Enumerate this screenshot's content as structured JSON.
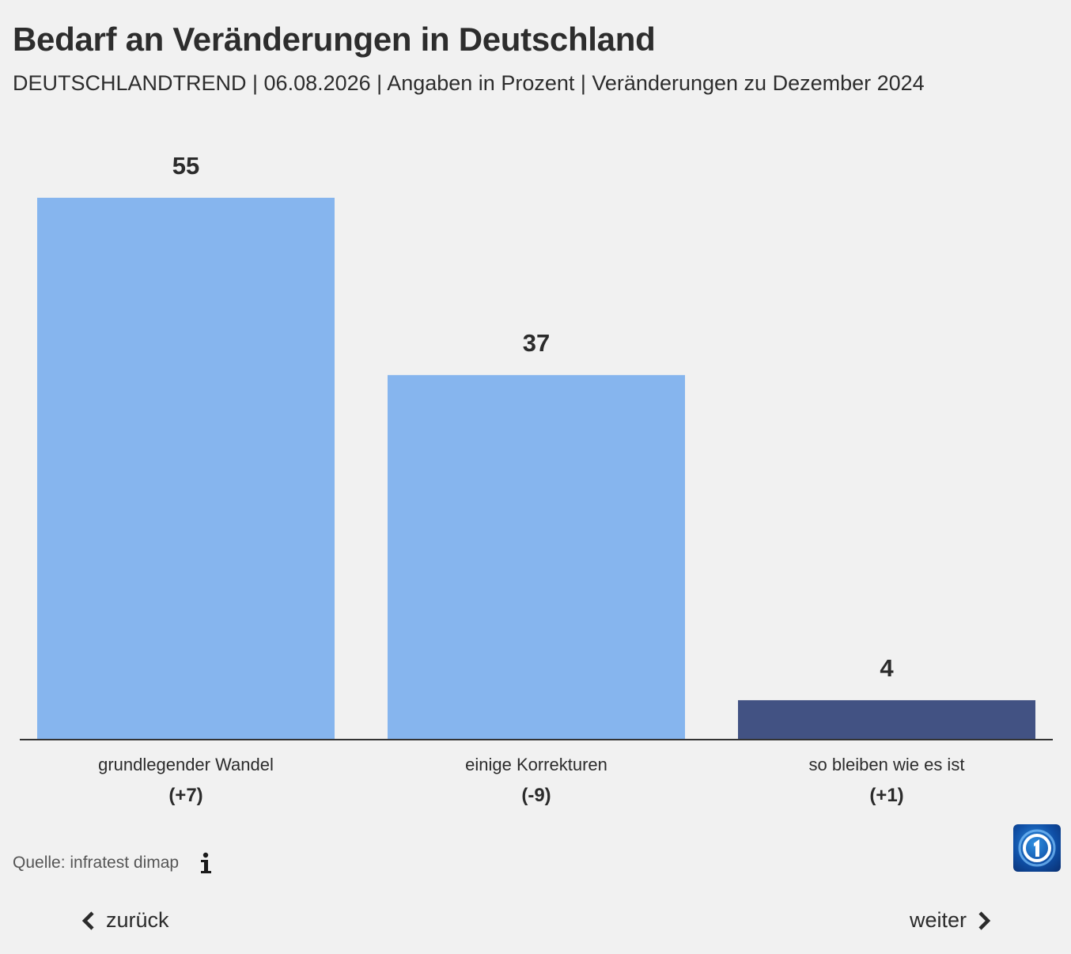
{
  "header": {
    "title": "Bedarf an Veränderungen in Deutschland",
    "subtitle": "DEUTSCHLANDTREND | 06.08.2026 | Angaben in Prozent | Veränderungen zu Dezember 2024"
  },
  "chart_data": {
    "type": "bar",
    "categories": [
      "grundlegender Wandel",
      "einige Korrekturen",
      "so bleiben wie es ist"
    ],
    "values": [
      55,
      37,
      4
    ],
    "value_labels": [
      "55",
      "37",
      "4"
    ],
    "changes": [
      "(+7)",
      "(-9)",
      "(+1)"
    ],
    "colors": [
      "#86b5ee",
      "#86b5ee",
      "#425283"
    ],
    "ylim": [
      0,
      55
    ],
    "grid": false
  },
  "footer": {
    "source": "Quelle: infratest dimap",
    "info_icon": "info-icon",
    "logo_icon": "tagesschau-logo"
  },
  "navigation": {
    "back_label": "zurück",
    "next_label": "weiter",
    "back_icon": "chevron-left-icon",
    "next_icon": "chevron-right-icon"
  }
}
